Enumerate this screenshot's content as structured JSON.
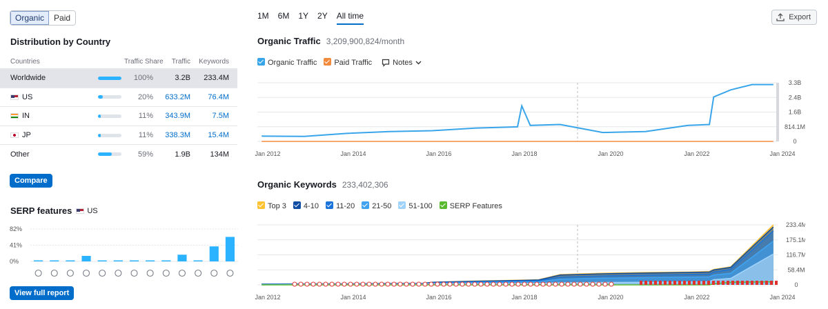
{
  "db_switch": {
    "organic": "Organic",
    "paid": "Paid"
  },
  "distribution": {
    "title": "Distribution by Country",
    "headers": {
      "countries": "Countries",
      "share": "Traffic Share",
      "traffic": "Traffic",
      "keywords": "Keywords"
    },
    "rows": [
      {
        "name": "Worldwide",
        "flag": "",
        "share_pct": 100,
        "share": "100%",
        "traffic": "3.2B",
        "keywords": "233.4M"
      },
      {
        "name": "US",
        "flag": "us",
        "share_pct": 20,
        "share": "20%",
        "traffic": "633.2M",
        "keywords": "76.4M"
      },
      {
        "name": "IN",
        "flag": "in",
        "share_pct": 11,
        "share": "11%",
        "traffic": "343.9M",
        "keywords": "7.5M"
      },
      {
        "name": "JP",
        "flag": "jp",
        "share_pct": 11,
        "share": "11%",
        "traffic": "338.3M",
        "keywords": "15.4M"
      },
      {
        "name": "Other",
        "flag": "",
        "share_pct": 59,
        "share": "59%",
        "traffic": "1.9B",
        "keywords": "134M"
      }
    ],
    "compare_label": "Compare"
  },
  "serp": {
    "title": "SERP features",
    "country": "US",
    "y_ticks": [
      "82%",
      "41%",
      "0%"
    ],
    "values": [
      2,
      2,
      0,
      14,
      0,
      0,
      2,
      2,
      2,
      17,
      0,
      38,
      62
    ],
    "icons": [
      "star-outline-icon",
      "link-icon",
      "star-icon",
      "image-icon",
      "play-icon",
      "video-icon",
      "play-circle-icon",
      "news-icon",
      "location-icon",
      "graduation-icon",
      "document-icon",
      "x-icon",
      "x-alt-icon"
    ],
    "view_report_label": "View full report"
  },
  "time_range": {
    "options": [
      "1M",
      "6M",
      "1Y",
      "2Y",
      "All time"
    ],
    "active": "All time"
  },
  "export_label": "Export",
  "organic_traffic": {
    "title": "Organic Traffic",
    "value": "3,209,900,824/month",
    "legend": {
      "organic": "Organic Traffic",
      "paid": "Paid Traffic",
      "notes": "Notes"
    },
    "y_ticks": [
      "3.3B",
      "2.4B",
      "1.6B",
      "814.1M",
      "0"
    ],
    "x_ticks": [
      "Jan 2012",
      "Jan 2014",
      "Jan 2016",
      "Jan 2018",
      "Jan 2020",
      "Jan 2022",
      "Jan 2024"
    ],
    "colors": {
      "organic": "#38a5ea",
      "paid": "#f28a3c"
    }
  },
  "organic_keywords": {
    "title": "Organic Keywords",
    "value": "233,402,306",
    "legend": [
      "Top 3",
      "4-10",
      "11-20",
      "21-50",
      "51-100",
      "SERP Features"
    ],
    "legend_colors": [
      "#ffc233",
      "#0f4ea3",
      "#1a74d9",
      "#3fa3f2",
      "#9fd3fb",
      "#5aba2f"
    ],
    "y_ticks": [
      "233.4M",
      "175.1M",
      "116.7M",
      "58.4M",
      "0"
    ],
    "x_ticks": [
      "Jan 2012",
      "Jan 2014",
      "Jan 2016",
      "Jan 2018",
      "Jan 2020",
      "Jan 2022",
      "Jan 2024"
    ]
  },
  "chart_data": [
    {
      "type": "line",
      "title": "Organic Traffic",
      "x": [
        "2012",
        "2013",
        "2014",
        "2015",
        "2016",
        "2017",
        "2018",
        "2018.1",
        "2018.3",
        "2019",
        "2020",
        "2021",
        "2022",
        "2022.5",
        "2022.6",
        "2023",
        "2023.5",
        "2024"
      ],
      "series": [
        {
          "name": "Organic Traffic",
          "values": [
            0.3,
            0.28,
            0.45,
            0.55,
            0.6,
            0.75,
            0.82,
            2.0,
            0.9,
            0.95,
            0.5,
            0.55,
            0.9,
            0.95,
            2.5,
            2.9,
            3.2,
            3.2
          ]
        },
        {
          "name": "Paid Traffic",
          "values": [
            0,
            0,
            0,
            0,
            0,
            0,
            0,
            0,
            0,
            0,
            0,
            0,
            0,
            0,
            0,
            0,
            0,
            0
          ]
        }
      ],
      "ylim": [
        0,
        3.3
      ]
    },
    {
      "type": "area",
      "title": "Organic Keywords",
      "x": [
        "2012",
        "2013",
        "2014",
        "2015",
        "2015.8",
        "2016",
        "2017",
        "2018",
        "2018.5",
        "2019",
        "2020",
        "2021",
        "2022",
        "2022.5",
        "2022.6",
        "2023",
        "2024"
      ],
      "series": [
        {
          "name": "Top 3",
          "values": [
            3,
            4,
            4,
            5,
            6,
            10,
            15,
            18,
            20,
            40,
            45,
            48,
            50,
            52,
            60,
            70,
            233
          ]
        },
        {
          "name": "4-10",
          "values": [
            3,
            4,
            4,
            5,
            6,
            10,
            14,
            17,
            19,
            38,
            43,
            46,
            48,
            50,
            58,
            68,
            225
          ]
        },
        {
          "name": "11-20",
          "values": [
            2,
            3,
            3,
            4,
            5,
            8,
            12,
            14,
            16,
            30,
            35,
            38,
            40,
            42,
            50,
            60,
            210
          ]
        },
        {
          "name": "21-50",
          "values": [
            1,
            2,
            2,
            3,
            4,
            6,
            9,
            11,
            12,
            22,
            26,
            28,
            30,
            31,
            38,
            45,
            170
          ]
        },
        {
          "name": "51-100",
          "values": [
            0,
            1,
            1,
            2,
            2,
            3,
            4,
            5,
            6,
            8,
            9,
            10,
            11,
            12,
            20,
            25,
            120
          ]
        },
        {
          "name": "SERP Features",
          "values": [
            0,
            0,
            0,
            0,
            0,
            0,
            0,
            0,
            0,
            0,
            0,
            0,
            0,
            0,
            4,
            10,
            12
          ]
        }
      ],
      "ylim": [
        0,
        233.4
      ]
    }
  ]
}
